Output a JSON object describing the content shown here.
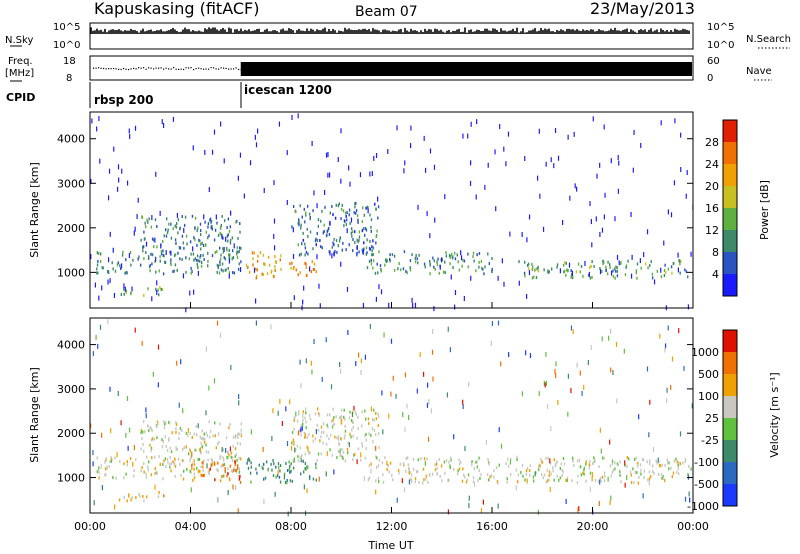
{
  "header": {
    "station": "Kapuskasing (fitACF)",
    "beam": "Beam 07",
    "date": "23/May/2013"
  },
  "top_panels": {
    "nsky_label": "N.Sky",
    "nsky_ticks": [
      "10^5",
      "10^0"
    ],
    "nsearch_label": "N.Search",
    "nsearch_ticks": [
      "10^5",
      "10^0"
    ],
    "freq_label": "Freq.",
    "freq_unit": "[MHz]",
    "freq_ticks": [
      "18",
      "8"
    ],
    "nave_label": "Nave",
    "nave_ticks": [
      "60",
      "0"
    ],
    "cpid_label": "CPID",
    "cpid_modes": [
      {
        "name": "rbsp 200",
        "start_hour": 0
      },
      {
        "name": "icescan 1200",
        "start_hour": 6
      }
    ]
  },
  "x_axis": {
    "label": "Time UT",
    "ticks": [
      "00:00",
      "04:00",
      "08:00",
      "12:00",
      "16:00",
      "20:00",
      "00:00"
    ],
    "range_hours": [
      0,
      24
    ]
  },
  "chart_data": [
    {
      "type": "heatmap",
      "name": "power",
      "ylabel": "Slant Range [km]",
      "yticks": [
        "1000",
        "2000",
        "3000",
        "4000"
      ],
      "ylim": [
        200,
        4600
      ],
      "colorbar_label": "Power [dB]",
      "colorbar_ticks": [
        "4",
        "8",
        "12",
        "16",
        "20",
        "24",
        "28"
      ],
      "colorbar_colors": [
        "#1a1aff",
        "#2a55c0",
        "#3d8a6a",
        "#60b040",
        "#c8c020",
        "#f0a000",
        "#f07000",
        "#e02000"
      ],
      "colorbar_range": [
        0,
        30
      ],
      "scatter_regions": [
        {
          "t0": 0.2,
          "t1": 6.0,
          "r0": 1000,
          "r1": 1500,
          "level": 10
        },
        {
          "t0": 2.0,
          "t1": 6.0,
          "r0": 1400,
          "r1": 2300,
          "level": 9
        },
        {
          "t0": 1.0,
          "t1": 3.0,
          "r0": 500,
          "r1": 700,
          "level": 14
        },
        {
          "t0": 6.2,
          "t1": 7.6,
          "r0": 900,
          "r1": 1500,
          "level": 22
        },
        {
          "t0": 7.8,
          "t1": 9.0,
          "r0": 900,
          "r1": 1300,
          "level": 24
        },
        {
          "t0": 8.0,
          "t1": 11.5,
          "r0": 1400,
          "r1": 2600,
          "level": 8
        },
        {
          "t0": 11.0,
          "t1": 16.0,
          "r0": 1000,
          "r1": 1500,
          "level": 10
        },
        {
          "t0": 17.0,
          "t1": 23.9,
          "r0": 900,
          "r1": 1300,
          "level": 12
        }
      ]
    },
    {
      "type": "heatmap",
      "name": "velocity",
      "ylabel": "Slant Range [km]",
      "yticks": [
        "1000",
        "2000",
        "3000",
        "4000"
      ],
      "ylim": [
        200,
        4600
      ],
      "colorbar_label": "Velocity [m s⁻¹]",
      "colorbar_ticks": [
        "1000",
        "500",
        "100",
        "25",
        "-25",
        "-100",
        "-500",
        "-1000"
      ],
      "colorbar_colors": [
        "#1a3aff",
        "#2a6ac0",
        "#3d8a6a",
        "#60c040",
        "#c8c8c0",
        "#f0a000",
        "#f07000",
        "#e01000"
      ],
      "scatter_regions": [
        {
          "t0": 0.2,
          "t1": 6.0,
          "r0": 1000,
          "r1": 1500,
          "level": 4
        },
        {
          "t0": 2.0,
          "t1": 6.0,
          "r0": 1400,
          "r1": 2300,
          "level": 4
        },
        {
          "t0": 1.0,
          "t1": 3.0,
          "r0": 500,
          "r1": 700,
          "level": 5
        },
        {
          "t0": 4.0,
          "t1": 6.0,
          "r0": 900,
          "r1": 1400,
          "level": 6
        },
        {
          "t0": 6.2,
          "t1": 9.0,
          "r0": 900,
          "r1": 1500,
          "level": 2
        },
        {
          "t0": 8.0,
          "t1": 11.5,
          "r0": 1400,
          "r1": 2600,
          "level": 4
        },
        {
          "t0": 11.0,
          "t1": 23.9,
          "r0": 900,
          "r1": 1500,
          "level": 4
        }
      ]
    }
  ]
}
